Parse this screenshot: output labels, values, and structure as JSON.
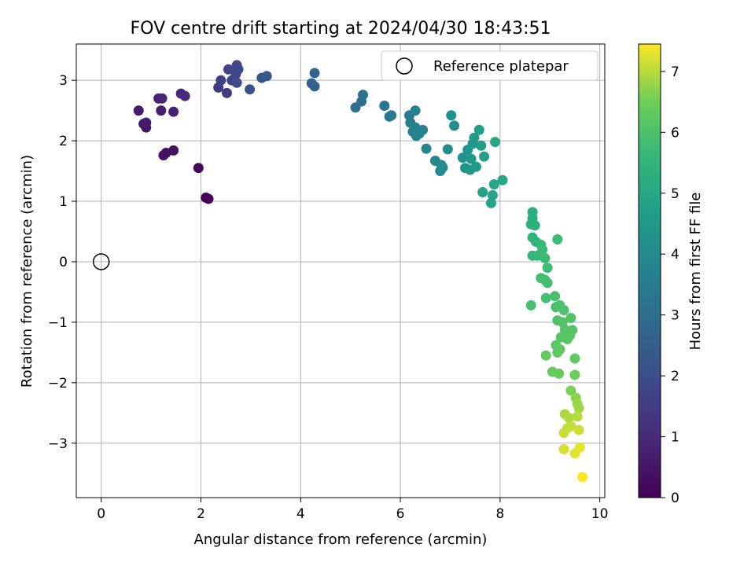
{
  "chart_data": {
    "type": "scatter",
    "title": "FOV centre drift starting at 2024/04/30 18:43:51",
    "xlabel": "Angular distance from reference (arcmin)",
    "ylabel": "Rotation from reference (arcmin)",
    "xlim": [
      -0.5,
      10.1
    ],
    "ylim": [
      -3.9,
      3.6
    ],
    "xticks": [
      0,
      2,
      4,
      6,
      8,
      10
    ],
    "yticks": [
      -3,
      -2,
      -1,
      0,
      1,
      2,
      3
    ],
    "grid": true,
    "legend": {
      "placement": "top-right",
      "entries": [
        "Reference platepar"
      ]
    },
    "reference_point": {
      "x": 0,
      "y": 0,
      "label": "Reference platepar"
    },
    "colorbar": {
      "label": "Hours from first FF file",
      "colormap": "viridis",
      "range": [
        0,
        7.45
      ],
      "ticks": [
        0,
        1,
        2,
        3,
        4,
        5,
        6,
        7
      ]
    },
    "points": [
      {
        "x": 2.1,
        "y": 1.06,
        "c": 0.05
      },
      {
        "x": 2.15,
        "y": 1.04,
        "c": 0.08
      },
      {
        "x": 1.95,
        "y": 1.55,
        "c": 0.2
      },
      {
        "x": 1.25,
        "y": 1.76,
        "c": 0.3
      },
      {
        "x": 1.3,
        "y": 1.8,
        "c": 0.35
      },
      {
        "x": 1.45,
        "y": 1.84,
        "c": 0.4
      },
      {
        "x": 0.9,
        "y": 2.22,
        "c": 0.5
      },
      {
        "x": 0.85,
        "y": 2.28,
        "c": 0.55
      },
      {
        "x": 0.9,
        "y": 2.3,
        "c": 0.6
      },
      {
        "x": 0.75,
        "y": 2.5,
        "c": 0.65
      },
      {
        "x": 1.2,
        "y": 2.5,
        "c": 0.7
      },
      {
        "x": 1.45,
        "y": 2.48,
        "c": 0.75
      },
      {
        "x": 1.15,
        "y": 2.7,
        "c": 0.8
      },
      {
        "x": 1.22,
        "y": 2.7,
        "c": 0.85
      },
      {
        "x": 1.6,
        "y": 2.78,
        "c": 0.95
      },
      {
        "x": 1.68,
        "y": 2.74,
        "c": 1.0
      },
      {
        "x": 2.35,
        "y": 2.88,
        "c": 1.4
      },
      {
        "x": 2.52,
        "y": 2.79,
        "c": 1.5
      },
      {
        "x": 2.4,
        "y": 3.0,
        "c": 1.6
      },
      {
        "x": 2.55,
        "y": 3.18,
        "c": 1.7
      },
      {
        "x": 2.62,
        "y": 3.0,
        "c": 1.75
      },
      {
        "x": 2.7,
        "y": 3.1,
        "c": 1.8
      },
      {
        "x": 2.72,
        "y": 3.25,
        "c": 1.85
      },
      {
        "x": 2.75,
        "y": 3.18,
        "c": 1.9
      },
      {
        "x": 2.72,
        "y": 2.96,
        "c": 1.95
      },
      {
        "x": 2.98,
        "y": 2.85,
        "c": 2.1
      },
      {
        "x": 3.22,
        "y": 3.04,
        "c": 2.2
      },
      {
        "x": 3.32,
        "y": 3.07,
        "c": 2.3
      },
      {
        "x": 4.22,
        "y": 2.95,
        "c": 2.6
      },
      {
        "x": 4.28,
        "y": 2.9,
        "c": 2.65
      },
      {
        "x": 4.28,
        "y": 3.12,
        "c": 2.7
      },
      {
        "x": 5.1,
        "y": 2.55,
        "c": 3.0
      },
      {
        "x": 5.22,
        "y": 2.65,
        "c": 3.05
      },
      {
        "x": 5.25,
        "y": 2.76,
        "c": 3.1
      },
      {
        "x": 5.68,
        "y": 2.58,
        "c": 3.25
      },
      {
        "x": 5.78,
        "y": 2.4,
        "c": 3.3
      },
      {
        "x": 5.82,
        "y": 2.42,
        "c": 3.35
      },
      {
        "x": 6.18,
        "y": 2.42,
        "c": 3.5
      },
      {
        "x": 6.2,
        "y": 2.3,
        "c": 3.55
      },
      {
        "x": 6.25,
        "y": 2.15,
        "c": 3.6
      },
      {
        "x": 6.3,
        "y": 2.5,
        "c": 3.65
      },
      {
        "x": 6.3,
        "y": 2.22,
        "c": 3.7
      },
      {
        "x": 6.32,
        "y": 2.08,
        "c": 3.72
      },
      {
        "x": 6.38,
        "y": 2.12,
        "c": 3.75
      },
      {
        "x": 6.45,
        "y": 2.18,
        "c": 3.8
      },
      {
        "x": 6.52,
        "y": 1.87,
        "c": 3.85
      },
      {
        "x": 6.7,
        "y": 1.67,
        "c": 3.9
      },
      {
        "x": 6.8,
        "y": 1.5,
        "c": 3.95
      },
      {
        "x": 6.82,
        "y": 1.6,
        "c": 4.0
      },
      {
        "x": 6.85,
        "y": 1.56,
        "c": 4.05
      },
      {
        "x": 6.95,
        "y": 1.86,
        "c": 4.1
      },
      {
        "x": 7.02,
        "y": 2.42,
        "c": 4.15
      },
      {
        "x": 7.08,
        "y": 2.25,
        "c": 4.2
      },
      {
        "x": 7.25,
        "y": 1.72,
        "c": 4.25
      },
      {
        "x": 7.3,
        "y": 1.55,
        "c": 4.3
      },
      {
        "x": 7.35,
        "y": 1.85,
        "c": 4.35
      },
      {
        "x": 7.4,
        "y": 1.52,
        "c": 4.4
      },
      {
        "x": 7.42,
        "y": 1.7,
        "c": 4.45
      },
      {
        "x": 7.45,
        "y": 1.95,
        "c": 4.5
      },
      {
        "x": 7.48,
        "y": 2.05,
        "c": 4.55
      },
      {
        "x": 7.52,
        "y": 1.57,
        "c": 4.6
      },
      {
        "x": 7.58,
        "y": 2.18,
        "c": 4.65
      },
      {
        "x": 7.62,
        "y": 1.92,
        "c": 4.7
      },
      {
        "x": 7.68,
        "y": 1.74,
        "c": 4.75
      },
      {
        "x": 7.65,
        "y": 1.15,
        "c": 4.8
      },
      {
        "x": 7.82,
        "y": 0.97,
        "c": 4.85
      },
      {
        "x": 7.85,
        "y": 1.1,
        "c": 4.9
      },
      {
        "x": 7.88,
        "y": 1.28,
        "c": 4.95
      },
      {
        "x": 7.9,
        "y": 1.98,
        "c": 4.98
      },
      {
        "x": 8.05,
        "y": 1.35,
        "c": 5.0
      },
      {
        "x": 8.65,
        "y": 0.82,
        "c": 5.2
      },
      {
        "x": 8.65,
        "y": 0.72,
        "c": 5.25
      },
      {
        "x": 8.62,
        "y": 0.62,
        "c": 5.3
      },
      {
        "x": 8.7,
        "y": 0.6,
        "c": 5.35
      },
      {
        "x": 8.65,
        "y": 0.4,
        "c": 5.4
      },
      {
        "x": 8.72,
        "y": 0.33,
        "c": 5.45
      },
      {
        "x": 8.65,
        "y": 0.1,
        "c": 5.5
      },
      {
        "x": 8.75,
        "y": 0.1,
        "c": 5.55
      },
      {
        "x": 8.82,
        "y": 0.28,
        "c": 5.6
      },
      {
        "x": 8.85,
        "y": 0.2,
        "c": 5.65
      },
      {
        "x": 8.9,
        "y": 0.06,
        "c": 5.7
      },
      {
        "x": 8.95,
        "y": -0.1,
        "c": 5.75
      },
      {
        "x": 9.15,
        "y": 0.37,
        "c": 5.75
      },
      {
        "x": 8.82,
        "y": -0.27,
        "c": 5.8
      },
      {
        "x": 8.9,
        "y": -0.3,
        "c": 5.82
      },
      {
        "x": 8.95,
        "y": -0.35,
        "c": 5.85
      },
      {
        "x": 8.92,
        "y": -0.6,
        "c": 5.88
      },
      {
        "x": 8.62,
        "y": -0.72,
        "c": 5.9
      },
      {
        "x": 9.1,
        "y": -0.57,
        "c": 5.92
      },
      {
        "x": 9.12,
        "y": -0.75,
        "c": 5.95
      },
      {
        "x": 9.2,
        "y": -0.72,
        "c": 5.98
      },
      {
        "x": 9.28,
        "y": -0.8,
        "c": 6.0
      },
      {
        "x": 9.15,
        "y": -0.97,
        "c": 6.02
      },
      {
        "x": 9.25,
        "y": -1.0,
        "c": 6.05
      },
      {
        "x": 9.42,
        "y": -0.93,
        "c": 6.08
      },
      {
        "x": 9.3,
        "y": -1.12,
        "c": 6.1
      },
      {
        "x": 9.45,
        "y": -1.13,
        "c": 6.12
      },
      {
        "x": 9.22,
        "y": -1.25,
        "c": 6.15
      },
      {
        "x": 9.35,
        "y": -1.28,
        "c": 6.18
      },
      {
        "x": 9.4,
        "y": -1.22,
        "c": 6.2
      },
      {
        "x": 9.12,
        "y": -1.38,
        "c": 6.22
      },
      {
        "x": 9.2,
        "y": -1.45,
        "c": 6.25
      },
      {
        "x": 9.15,
        "y": -1.5,
        "c": 6.28
      },
      {
        "x": 8.92,
        "y": -1.55,
        "c": 6.3
      },
      {
        "x": 9.5,
        "y": -1.6,
        "c": 6.32
      },
      {
        "x": 9.05,
        "y": -1.82,
        "c": 6.35
      },
      {
        "x": 9.18,
        "y": -1.85,
        "c": 6.4
      },
      {
        "x": 9.5,
        "y": -1.87,
        "c": 6.45
      },
      {
        "x": 9.42,
        "y": -2.13,
        "c": 6.6
      },
      {
        "x": 9.52,
        "y": -2.25,
        "c": 6.7
      },
      {
        "x": 9.55,
        "y": -2.35,
        "c": 6.8
      },
      {
        "x": 9.58,
        "y": -2.42,
        "c": 6.85
      },
      {
        "x": 9.3,
        "y": -2.52,
        "c": 6.9
      },
      {
        "x": 9.38,
        "y": -2.58,
        "c": 6.95
      },
      {
        "x": 9.55,
        "y": -2.56,
        "c": 7.0
      },
      {
        "x": 9.42,
        "y": -2.72,
        "c": 7.05
      },
      {
        "x": 9.35,
        "y": -2.75,
        "c": 7.08
      },
      {
        "x": 9.28,
        "y": -2.83,
        "c": 7.1
      },
      {
        "x": 9.58,
        "y": -2.78,
        "c": 7.12
      },
      {
        "x": 9.28,
        "y": -3.1,
        "c": 7.2
      },
      {
        "x": 9.5,
        "y": -3.17,
        "c": 7.25
      },
      {
        "x": 9.6,
        "y": -3.07,
        "c": 7.3
      },
      {
        "x": 9.65,
        "y": -3.56,
        "c": 7.45
      }
    ]
  }
}
